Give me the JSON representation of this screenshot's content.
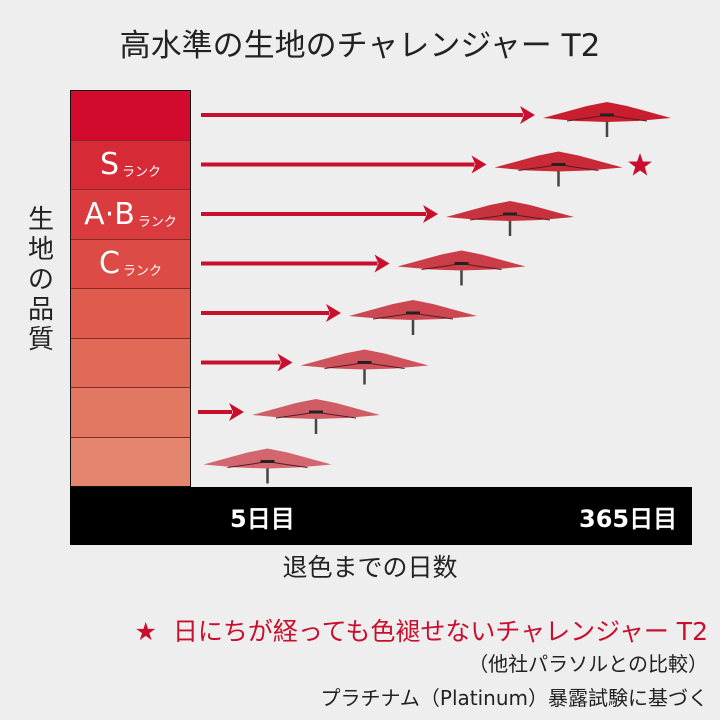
{
  "title": "高水準の生地のチャレンジャー T2",
  "y_axis_label": "生地の品質",
  "x_axis_label": "退色までの日数",
  "x_ticks": {
    "start": "5日目",
    "end": "365日目"
  },
  "ranks": [
    {
      "letter": "",
      "suffix": ""
    },
    {
      "letter": "S",
      "suffix": "ランク"
    },
    {
      "letter": "A·B",
      "suffix": "ランク"
    },
    {
      "letter": "C",
      "suffix": "ランク"
    },
    {
      "letter": "",
      "suffix": ""
    },
    {
      "letter": "",
      "suffix": ""
    },
    {
      "letter": "",
      "suffix": ""
    },
    {
      "letter": "",
      "suffix": ""
    }
  ],
  "rank_colors": [
    "#d20a2e",
    "#d62a37",
    "#d93b3e",
    "#dc4b45",
    "#de5b4e",
    "#e06a58",
    "#e27762",
    "#e4856e"
  ],
  "umbrella_colors": [
    "#c81e30",
    "#c92a38",
    "#c8323e",
    "#cb3d48",
    "#cc4752",
    "#cf525c",
    "#d05c66",
    "#d3666f"
  ],
  "accent_color": "#c8102e",
  "highlight_row": 1,
  "note": {
    "star": "★",
    "text": "日にちが経っても色褪せないチャレンジャー T2"
  },
  "sub_note_1": "（他社パラソルとの比較）",
  "sub_note_2": "プラチナム（Platinum）暴露試験に基づく"
}
